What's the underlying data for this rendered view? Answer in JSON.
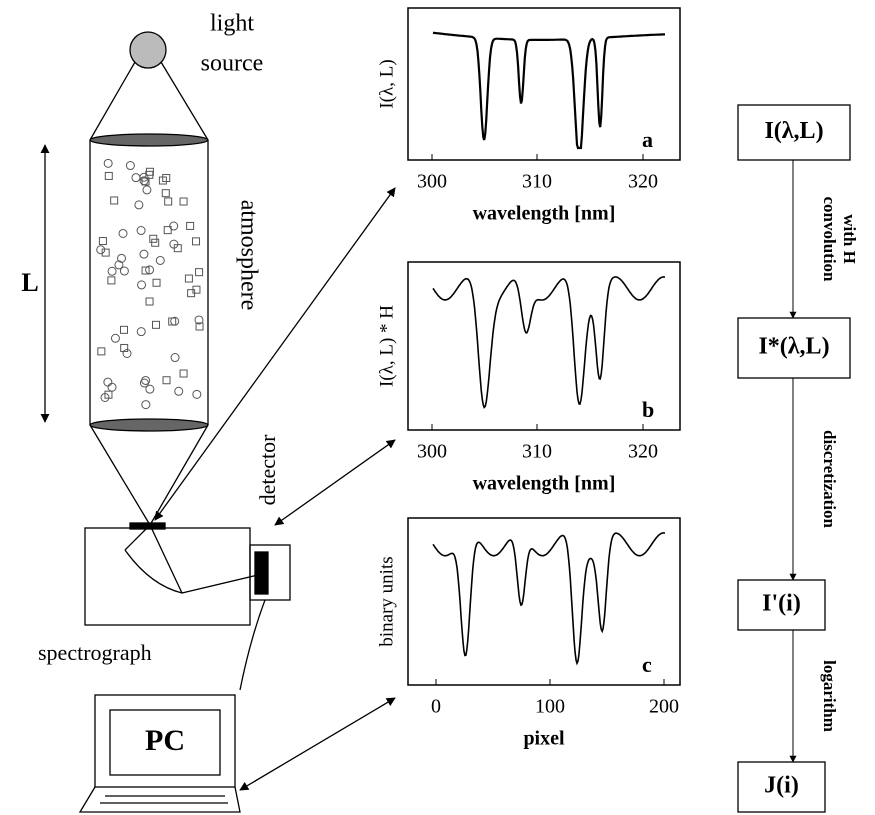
{
  "setup": {
    "light_source": [
      "light",
      "source"
    ],
    "atmosphere": "atmosphere",
    "length": "L",
    "detector": "detector",
    "spectrograph": "spectrograph",
    "pc": "PC"
  },
  "plots": [
    {
      "panel": "a",
      "ylabel": "I(λ, L)",
      "xlabel": "wavelength [nm]",
      "xticks": [
        "300",
        "310",
        "320"
      ]
    },
    {
      "panel": "b",
      "ylabel": "I(λ, L) * H",
      "xlabel": "wavelength [nm]",
      "xticks": [
        "300",
        "310",
        "320"
      ]
    },
    {
      "panel": "c",
      "ylabel": "binary units",
      "xlabel": "pixel",
      "xticks": [
        "0",
        "100",
        "200"
      ]
    }
  ],
  "flow": {
    "nodes": [
      "I(λ,L)",
      "I*(λ,L)",
      "I'(i)",
      "J(i)"
    ],
    "edges": [
      [
        "convolution",
        "with H"
      ],
      [
        "discretization"
      ],
      [
        "logarithm"
      ]
    ]
  }
}
